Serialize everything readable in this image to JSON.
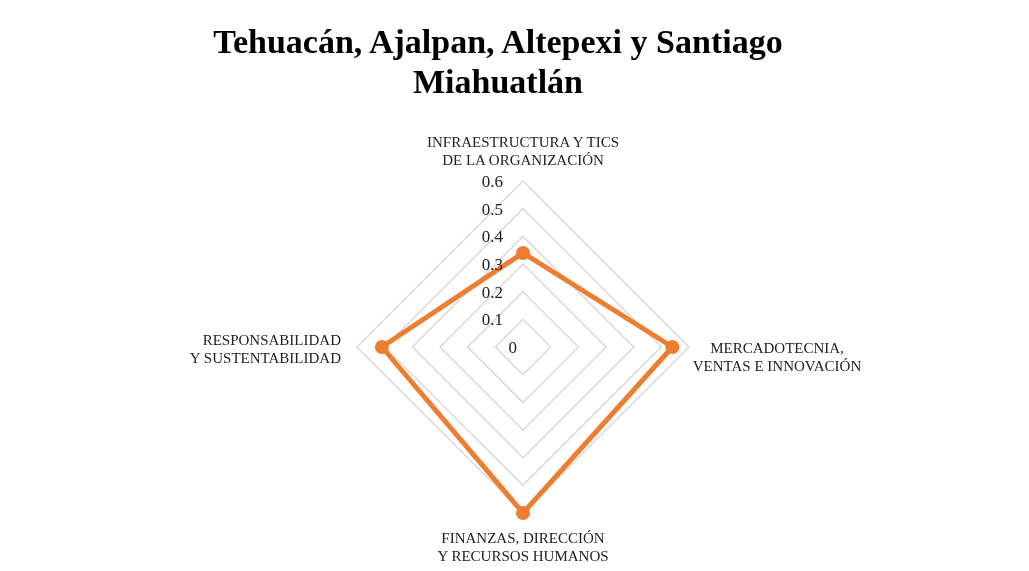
{
  "chart_data": {
    "type": "radar",
    "title": "Tehuacán, Ajalpan, Altepexi y Santiago Miahuatlán",
    "categories": [
      "INFRAESTRUCTURA Y TICS DE LA ORGANIZACIÓN",
      "MERCADOTECNIA, VENTAS E INNOVACIÓN",
      "FINANZAS, DIRECCIÓN Y RECURSOS HUMANOS",
      "RESPONSABILIDAD Y SUSTENTABILIDAD"
    ],
    "series": [
      {
        "color": "#ed7d31",
        "values": [
          0.34,
          0.54,
          0.6,
          0.51
        ]
      }
    ],
    "ylim": [
      0,
      0.6
    ],
    "yticks": [
      0,
      0.1,
      0.2,
      0.3,
      0.4,
      0.5,
      0.6
    ],
    "grid": true,
    "marker": "circle",
    "legend": false
  }
}
